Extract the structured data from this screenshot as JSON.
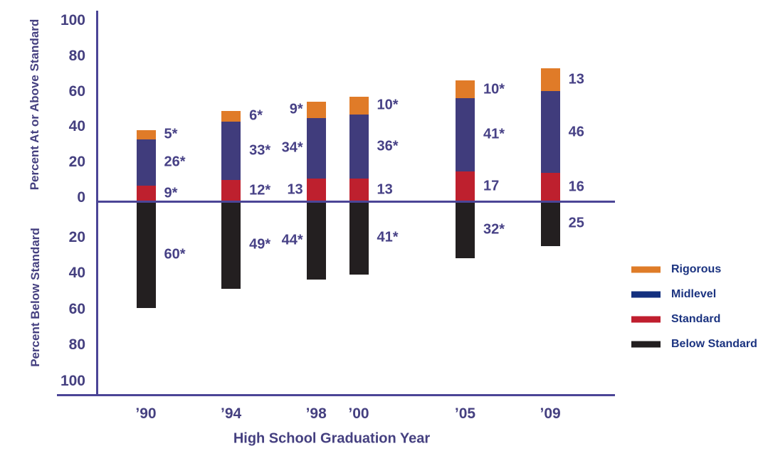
{
  "chart_data": {
    "type": "bar",
    "subtype": "diverging-stacked-bar",
    "title": "",
    "xlabel": "High School Graduation Year",
    "ylabel_top": "Percent At or Above Standard",
    "ylabel_bottom": "Percent Below Standard",
    "categories": [
      "’90",
      "’94",
      "’98",
      "’00",
      "’05",
      "’09"
    ],
    "years": [
      1990,
      1994,
      1998,
      2000,
      2005,
      2009
    ],
    "y_axis": {
      "ticks_top": [
        100,
        80,
        60,
        40,
        20,
        0
      ],
      "ticks_bottom": [
        20,
        40,
        60,
        80,
        100
      ],
      "max": 100,
      "grid": false
    },
    "series_above": [
      {
        "name": "Standard",
        "color": "#BE202E",
        "values": [
          9,
          12,
          13,
          13,
          17,
          16
        ],
        "labels": [
          "9*",
          "12*",
          "13",
          "13",
          "17",
          "16"
        ]
      },
      {
        "name": "Midlevel",
        "color": "#403C7C",
        "values": [
          26,
          33,
          34,
          36,
          41,
          46
        ],
        "labels": [
          "26*",
          "33*",
          "34*",
          "36*",
          "41*",
          "46"
        ]
      },
      {
        "name": "Rigorous",
        "color": "#E07B28",
        "values": [
          5,
          6,
          9,
          10,
          10,
          13
        ],
        "labels": [
          "5*",
          "6*",
          "9*",
          "10*",
          "10*",
          "13"
        ]
      }
    ],
    "series_below": {
      "name": "Below Standard",
      "color": "#231F20",
      "values": [
        60,
        49,
        44,
        41,
        32,
        25
      ],
      "labels": [
        "60*",
        "49*",
        "44*",
        "41*",
        "32*",
        "25"
      ]
    },
    "label_side_per_category": [
      "right",
      "right",
      "left",
      "right",
      "right",
      "right"
    ],
    "legend": {
      "position": "right",
      "entries": [
        {
          "label": "Rigorous",
          "color": "#DF7C28"
        },
        {
          "label": "Midlevel",
          "color": "#13307F"
        },
        {
          "label": "Standard",
          "color": "#C01E2E"
        },
        {
          "label": "Below Standard",
          "color": "#221E1F"
        }
      ]
    }
  },
  "colors": {
    "axis_line": "#4B4596",
    "value_label_text": "#474186",
    "tick_text": "#454080",
    "legend_text": "#1B3380"
  }
}
